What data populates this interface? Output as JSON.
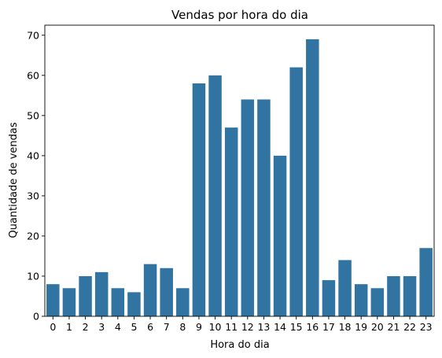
{
  "chart_data": {
    "type": "bar",
    "title": "Vendas por hora do dia",
    "xlabel": "Hora do dia",
    "ylabel": "Quantidade de vendas",
    "categories": [
      "0",
      "1",
      "2",
      "3",
      "4",
      "5",
      "6",
      "7",
      "8",
      "9",
      "10",
      "11",
      "12",
      "13",
      "14",
      "15",
      "16",
      "17",
      "18",
      "19",
      "20",
      "21",
      "22",
      "23"
    ],
    "values": [
      8,
      7,
      10,
      11,
      7,
      6,
      13,
      12,
      7,
      58,
      60,
      47,
      54,
      54,
      40,
      62,
      69,
      9,
      14,
      8,
      7,
      10,
      10,
      17
    ],
    "yticks": [
      0,
      10,
      20,
      30,
      40,
      50,
      60,
      70
    ],
    "ylim": [
      0,
      72.5
    ],
    "bar_color": "#3274a1",
    "grid": false,
    "legend": "none"
  }
}
